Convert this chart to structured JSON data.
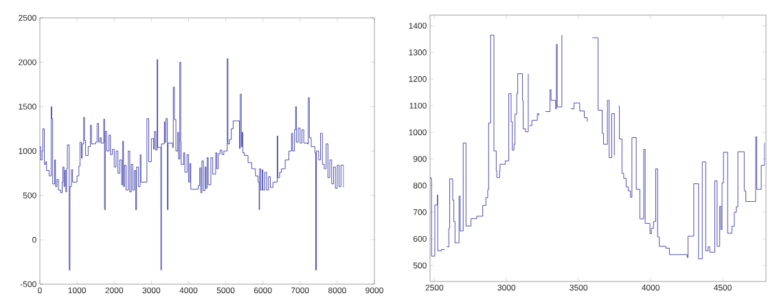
{
  "chart_data": [
    {
      "type": "step",
      "xlim": [
        0,
        9000
      ],
      "ylim": [
        -500,
        2500
      ],
      "xticks": [
        0,
        1000,
        2000,
        3000,
        4000,
        5000,
        6000,
        7000,
        8000,
        9000
      ],
      "yticks": [
        -500,
        0,
        500,
        1000,
        1500,
        2000,
        2500
      ],
      "grid": false,
      "series": [
        {
          "color": "#1f1f9f",
          "x": [
            0,
            20,
            60,
            80,
            120,
            160,
            180,
            250,
            305,
            320,
            345,
            400,
            420,
            460,
            500,
            560,
            600,
            620,
            650,
            670,
            700,
            720,
            740,
            790,
            810,
            850,
            880,
            1000,
            1050,
            1080,
            1120,
            1140,
            1180,
            1200,
            1230,
            1300,
            1360,
            1390,
            1500,
            1540,
            1580,
            1620,
            1650,
            1720,
            1740,
            1760,
            1800,
            1860,
            1900,
            1950,
            2000,
            2050,
            2100,
            2150,
            2200,
            2230,
            2250,
            2280,
            2320,
            2380,
            2420,
            2460,
            2500,
            2540,
            2580,
            2600,
            2650,
            2700,
            2720,
            2880,
            2930,
            3000,
            3060,
            3080,
            3120,
            3155,
            3170,
            3257,
            3270,
            3350,
            3360,
            3390,
            3430,
            3450,
            3570,
            3590,
            3620,
            3660,
            3710,
            3730,
            3765,
            3790,
            3800,
            3870,
            3900,
            3960,
            4000,
            4035,
            4060,
            4260,
            4300,
            4330,
            4360,
            4400,
            4445,
            4470,
            4500,
            4530,
            4600,
            4650,
            4730,
            4760,
            4800,
            4850,
            4900,
            4950,
            5040,
            5060,
            5100,
            5150,
            5200,
            5370,
            5390,
            5420,
            5440,
            5460,
            5500,
            5600,
            5700,
            5800,
            5870,
            5900,
            5910,
            5940,
            5980,
            6000,
            6050,
            6100,
            6150,
            6200,
            6270,
            6385,
            6400,
            6450,
            6500,
            6600,
            6700,
            6770,
            6800,
            6850,
            6880,
            6900,
            6950,
            7000,
            7050,
            7100,
            7200,
            7220,
            7250,
            7300,
            7400,
            7420,
            7440,
            7500,
            7550,
            7600,
            7650,
            7700,
            7750,
            7800,
            7850,
            7900,
            7950,
            8000,
            8050,
            8100,
            8170
          ],
          "values": [
            1050,
            900,
            1000,
            1250,
            850,
            880,
            780,
            720,
            1500,
            1365,
            630,
            900,
            600,
            680,
            560,
            530,
            650,
            820,
            600,
            780,
            540,
            800,
            1070,
            -340,
            600,
            790,
            650,
            720,
            830,
            1100,
            920,
            1080,
            1380,
            1120,
            950,
            1050,
            1290,
            1080,
            1100,
            1310,
            1100,
            1150,
            1090,
            1360,
            340,
            1220,
            1000,
            1180,
            960,
            1020,
            820,
            1000,
            750,
            900,
            620,
            1110,
            600,
            840,
            560,
            1000,
            540,
            850,
            560,
            780,
            340,
            820,
            600,
            960,
            650,
            1365,
            880,
            1140,
            1020,
            1220,
            1010,
            2030,
            1040,
            -340,
            1080,
            1330,
            1100,
            1365,
            340,
            1090,
            1040,
            1720,
            1355,
            1000,
            1210,
            910,
            2000,
            1100,
            850,
            980,
            760,
            960,
            650,
            860,
            570,
            610,
            810,
            530,
            890,
            555,
            820,
            580,
            925,
            620,
            925,
            740,
            980,
            800,
            970,
            1010,
            960,
            1000,
            2040,
            1080,
            1130,
            1250,
            1340,
            1030,
            1640,
            1050,
            1210,
            980,
            950,
            870,
            800,
            720,
            650,
            340,
            800,
            560,
            790,
            560,
            760,
            560,
            710,
            590,
            650,
            1170,
            700,
            760,
            800,
            900,
            1000,
            1200,
            1000,
            1240,
            1500,
            1100,
            1260,
            1090,
            1240,
            1090,
            1080,
            1600,
            1150,
            1050,
            980,
            -340,
            1000,
            900,
            1200,
            850,
            800,
            1080,
            700,
            900,
            630,
            820,
            580,
            840,
            600,
            840,
            590
          ]
        }
      ]
    },
    {
      "type": "step",
      "xlim": [
        2470,
        4800
      ],
      "ylim": [
        440,
        1440
      ],
      "xticks": [
        2500,
        3000,
        3500,
        4000,
        4500
      ],
      "yticks": [
        500,
        600,
        700,
        800,
        900,
        1000,
        1100,
        1200,
        1300,
        1400
      ],
      "grid": false,
      "series": [
        {
          "color": "#1f1f9f",
          "x": [
            2470,
            2476,
            2480,
            2503,
            2521,
            2523,
            2548,
            2571,
            2576,
            2587,
            2600,
            2606,
            2627,
            2635,
            2643,
            2671,
            2679,
            2700,
            2719,
            2754,
            2794,
            2835,
            2857,
            2870,
            2876,
            2890,
            2913,
            2929,
            2933,
            2952,
            2955,
            2992,
            3016,
            3032,
            3040,
            3052,
            3059,
            3071,
            3078,
            3111,
            3116,
            3132,
            3151,
            3155,
            3160,
            3176,
            3214,
            3225,
            3257,
            3270,
            3302,
            3309,
            3341,
            3346,
            3352,
            3384,
            3428,
            3446,
            3468,
            3508,
            3540,
            3560,
            3580,
            3596,
            3635,
            3664,
            3673,
            3700,
            3712,
            3730,
            3748,
            3765,
            3778,
            3783,
            3801,
            3813,
            3830,
            3845,
            3860,
            3870,
            3900,
            3925,
            3952,
            3962,
            3995,
            4005,
            4020,
            4035,
            4048,
            4060,
            4105,
            4130,
            4253,
            4259,
            4299,
            4332,
            4358,
            4382,
            4398,
            4410,
            4445,
            4461,
            4479,
            4487,
            4495,
            4505,
            4534,
            4563,
            4580,
            4594,
            4605,
            4649,
            4660,
            4728,
            4736,
            4767,
            4790
          ],
          "values": [
            830,
            826,
            535,
            727,
            765,
            555,
            560,
            560,
            null,
            570,
            640,
            825,
            745,
            665,
            585,
            760,
            630,
            960,
            648,
            676,
            685,
            725,
            755,
            785,
            1035,
            1365,
            930,
            855,
            830,
            855,
            880,
            893,
            1145,
            1040,
            933,
            955,
            1068,
            1145,
            1220,
            1120,
            1013,
            1002,
            1220,
            null,
            1025,
            1045,
            1070,
            1062,
            null,
            1078,
            1160,
            1120,
            1088,
            1330,
            1095,
            1365,
            null,
            1088,
            1110,
            1080,
            1055,
            1040,
            null,
            1355,
            1083,
            996,
            955,
            1120,
            905,
            1070,
            913,
            null,
            1098,
            975,
            846,
            827,
            795,
            780,
            756,
            980,
            786,
            675,
            936,
            658,
            619,
            640,
            665,
            863,
            607,
            572,
            565,
            541,
            530,
            610,
            807,
            525,
            889,
            555,
            570,
            550,
            818,
            572,
            722,
            635,
            810,
            925,
            621,
            647,
            700,
            720,
            927,
            780,
            740,
            983,
            786,
            876,
            960
          ]
        }
      ]
    }
  ]
}
